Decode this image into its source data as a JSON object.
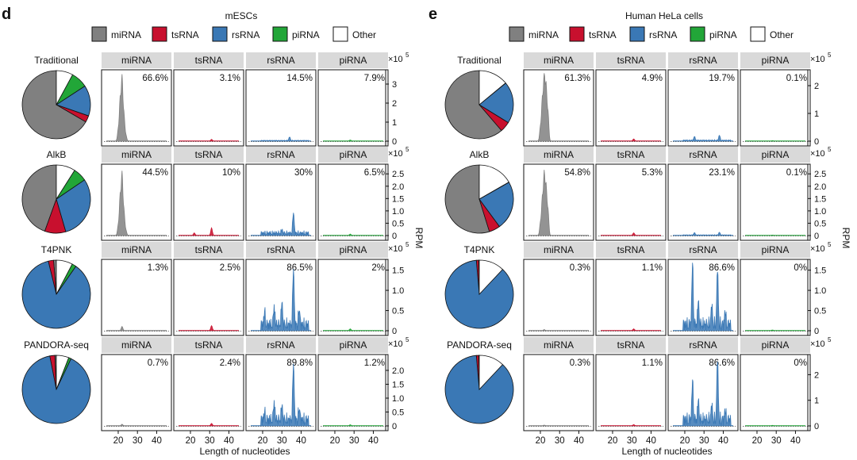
{
  "colors": {
    "miRNA": "#808080",
    "tsRNA": "#c8102e",
    "rsRNA": "#3a78b5",
    "piRNA": "#22a638",
    "Other": "#ffffff",
    "strip": "#d9d9d9"
  },
  "categories": [
    "miRNA",
    "tsRNA",
    "rsRNA",
    "piRNA",
    "Other"
  ],
  "methods": [
    "Traditional",
    "AlkB",
    "T4PNK",
    "PANDORA-seq"
  ],
  "xlabel": "Length of nucleotides",
  "ylabel": "RPM",
  "x_ticks": [
    "20",
    "30",
    "40"
  ],
  "exponent_label": "×10",
  "exponent_power": "5",
  "chart_data": [
    {
      "type": "pie+line",
      "panel_letter": "d",
      "title": "mESCs",
      "legend": [
        "miRNA",
        "tsRNA",
        "rsRNA",
        "piRNA",
        "Other"
      ],
      "rows": [
        {
          "method": "Traditional",
          "pie": {
            "miRNA": 66.6,
            "tsRNA": 3.1,
            "rsRNA": 14.5,
            "piRNA": 7.9,
            "Other": 7.9
          },
          "pct_labels": [
            "66.6%",
            "3.1%",
            "14.5%",
            "7.9%"
          ],
          "y_ticks": [
            "0",
            "1",
            "2",
            "3"
          ],
          "y_tick_values": [
            0,
            1,
            2,
            3
          ],
          "ylim": [
            0,
            3.5
          ],
          "peaks": {
            "miRNA": [
              [
                22,
                3.35
              ],
              [
                21,
                2.2
              ],
              [
                23,
                1.4
              ],
              [
                20,
                0.6
              ],
              [
                24,
                0.3
              ]
            ],
            "tsRNA": [
              [
                31,
                0.08
              ]
            ],
            "rsRNA": [
              [
                34,
                0.2
              ]
            ],
            "piRNA": [
              [
                28,
                0.05
              ]
            ]
          }
        },
        {
          "method": "AlkB",
          "pie": {
            "miRNA": 44.5,
            "tsRNA": 10,
            "rsRNA": 30,
            "piRNA": 6.5,
            "Other": 9
          },
          "pct_labels": [
            "44.5%",
            "10%",
            "30%",
            "6.5%"
          ],
          "y_ticks": [
            "0",
            "0.5",
            "1.0",
            "1.5",
            "2.0",
            "2.5"
          ],
          "y_tick_values": [
            0,
            0.5,
            1.0,
            1.5,
            2.0,
            2.5
          ],
          "ylim": [
            0,
            2.7
          ],
          "peaks": {
            "miRNA": [
              [
                22,
                2.5
              ],
              [
                21,
                1.6
              ],
              [
                23,
                1.0
              ],
              [
                20,
                0.4
              ],
              [
                24,
                0.2
              ]
            ],
            "tsRNA": [
              [
                31,
                0.3
              ],
              [
                22,
                0.1
              ]
            ],
            "rsRNA": [
              [
                36,
                0.9
              ],
              [
                30,
                0.15
              ]
            ],
            "piRNA": [
              [
                28,
                0.05
              ]
            ]
          }
        },
        {
          "method": "T4PNK",
          "pie": {
            "miRNA": 1.3,
            "tsRNA": 2.5,
            "rsRNA": 86.5,
            "piRNA": 2,
            "Other": 7.7
          },
          "pct_labels": [
            "1.3%",
            "2.5%",
            "86.5%",
            "2%"
          ],
          "y_ticks": [
            "0",
            "0.5",
            "1.0",
            "1.5"
          ],
          "y_tick_values": [
            0,
            0.5,
            1.0,
            1.5
          ],
          "ylim": [
            0,
            1.65
          ],
          "peaks": {
            "miRNA": [
              [
                22,
                0.1
              ]
            ],
            "tsRNA": [
              [
                31,
                0.12
              ]
            ],
            "rsRNA": [
              [
                36,
                1.5
              ],
              [
                30,
                0.6
              ],
              [
                26,
                0.5
              ],
              [
                39,
                0.45
              ],
              [
                21,
                0.35
              ]
            ],
            "piRNA": [
              [
                28,
                0.04
              ]
            ]
          }
        },
        {
          "method": "PANDORA-seq",
          "pie": {
            "miRNA": 0.7,
            "tsRNA": 2.4,
            "rsRNA": 89.8,
            "piRNA": 1.2,
            "Other": 5.9
          },
          "pct_labels": [
            "0.7%",
            "2.4%",
            "89.8%",
            "1.2%"
          ],
          "y_ticks": [
            "0",
            "0.5",
            "1.0",
            "1.5",
            "2.0"
          ],
          "y_tick_values": [
            0,
            0.5,
            1.0,
            1.5,
            2.0
          ],
          "ylim": [
            0,
            2.4
          ],
          "peaks": {
            "miRNA": [
              [
                22,
                0.05
              ]
            ],
            "tsRNA": [
              [
                31,
                0.08
              ]
            ],
            "rsRNA": [
              [
                36,
                2.2
              ],
              [
                26,
                0.7
              ],
              [
                30,
                0.55
              ],
              [
                39,
                0.5
              ],
              [
                21,
                0.3
              ]
            ],
            "piRNA": [
              [
                28,
                0.03
              ]
            ]
          }
        }
      ]
    },
    {
      "type": "pie+line",
      "panel_letter": "e",
      "title": "Human HeLa cells",
      "legend": [
        "miRNA",
        "tsRNA",
        "rsRNA",
        "piRNA",
        "Other"
      ],
      "rows": [
        {
          "method": "Traditional",
          "pie": {
            "miRNA": 61.3,
            "tsRNA": 4.9,
            "rsRNA": 19.7,
            "piRNA": 0.1,
            "Other": 14
          },
          "pct_labels": [
            "61.3%",
            "4.9%",
            "19.7%",
            "0.1%"
          ],
          "y_ticks": [
            "0",
            "1",
            "2"
          ],
          "y_tick_values": [
            0,
            1,
            2
          ],
          "ylim": [
            0,
            2.4
          ],
          "peaks": {
            "miRNA": [
              [
                22,
                2.4
              ],
              [
                23,
                2.0
              ],
              [
                21,
                1.5
              ],
              [
                24,
                1.0
              ],
              [
                20,
                0.5
              ]
            ],
            "tsRNA": [
              [
                31,
                0.07
              ]
            ],
            "rsRNA": [
              [
                38,
                0.2
              ],
              [
                25,
                0.15
              ]
            ],
            "piRNA": [
              [
                28,
                0.01
              ]
            ]
          }
        },
        {
          "method": "AlkB",
          "pie": {
            "miRNA": 54.8,
            "tsRNA": 5.3,
            "rsRNA": 23.1,
            "piRNA": 0.1,
            "Other": 16.7
          },
          "pct_labels": [
            "54.8%",
            "5.3%",
            "23.1%",
            "0.1%"
          ],
          "y_ticks": [
            "0",
            "0.5",
            "1.0",
            "1.5",
            "2.0",
            "2.5"
          ],
          "y_tick_values": [
            0,
            0.5,
            1.0,
            1.5,
            2.0,
            2.5
          ],
          "ylim": [
            0,
            2.7
          ],
          "peaks": {
            "miRNA": [
              [
                22,
                2.5
              ],
              [
                23,
                2.0
              ],
              [
                21,
                1.5
              ],
              [
                24,
                1.0
              ],
              [
                20,
                0.5
              ]
            ],
            "tsRNA": [
              [
                31,
                0.1
              ]
            ],
            "rsRNA": [
              [
                38,
                0.12
              ],
              [
                25,
                0.1
              ]
            ],
            "piRNA": [
              [
                28,
                0.01
              ]
            ]
          }
        },
        {
          "method": "T4PNK",
          "pie": {
            "miRNA": 0.3,
            "tsRNA": 1.1,
            "rsRNA": 86.6,
            "piRNA": 0,
            "Other": 12
          },
          "pct_labels": [
            "0.3%",
            "1.1%",
            "86.6%",
            "0%"
          ],
          "y_ticks": [
            "0",
            "0.5",
            "1.0",
            "1.5"
          ],
          "y_tick_values": [
            0,
            0.5,
            1.0,
            1.5
          ],
          "ylim": [
            0,
            1.65
          ],
          "peaks": {
            "miRNA": [
              [
                22,
                0.02
              ]
            ],
            "tsRNA": [
              [
                31,
                0.04
              ]
            ],
            "rsRNA": [
              [
                24,
                1.6
              ],
              [
                37,
                1.45
              ],
              [
                27,
                0.6
              ],
              [
                34,
                0.5
              ],
              [
                41,
                0.35
              ]
            ],
            "piRNA": [
              [
                28,
                0.01
              ]
            ]
          }
        },
        {
          "method": "PANDORA-seq",
          "pie": {
            "miRNA": 0.3,
            "tsRNA": 1.1,
            "rsRNA": 86.6,
            "piRNA": 0,
            "Other": 12
          },
          "pct_labels": [
            "0.3%",
            "1.1%",
            "86.6%",
            "0%"
          ],
          "y_ticks": [
            "0",
            "1",
            "2"
          ],
          "y_tick_values": [
            0,
            1,
            2
          ],
          "ylim": [
            0,
            2.6
          ],
          "peaks": {
            "miRNA": [
              [
                22,
                0.02
              ]
            ],
            "tsRNA": [
              [
                31,
                0.04
              ]
            ],
            "rsRNA": [
              [
                37,
                2.5
              ],
              [
                24,
                1.6
              ],
              [
                27,
                0.8
              ],
              [
                34,
                0.6
              ],
              [
                41,
                0.4
              ]
            ],
            "piRNA": [
              [
                28,
                0.01
              ]
            ]
          }
        }
      ]
    }
  ]
}
